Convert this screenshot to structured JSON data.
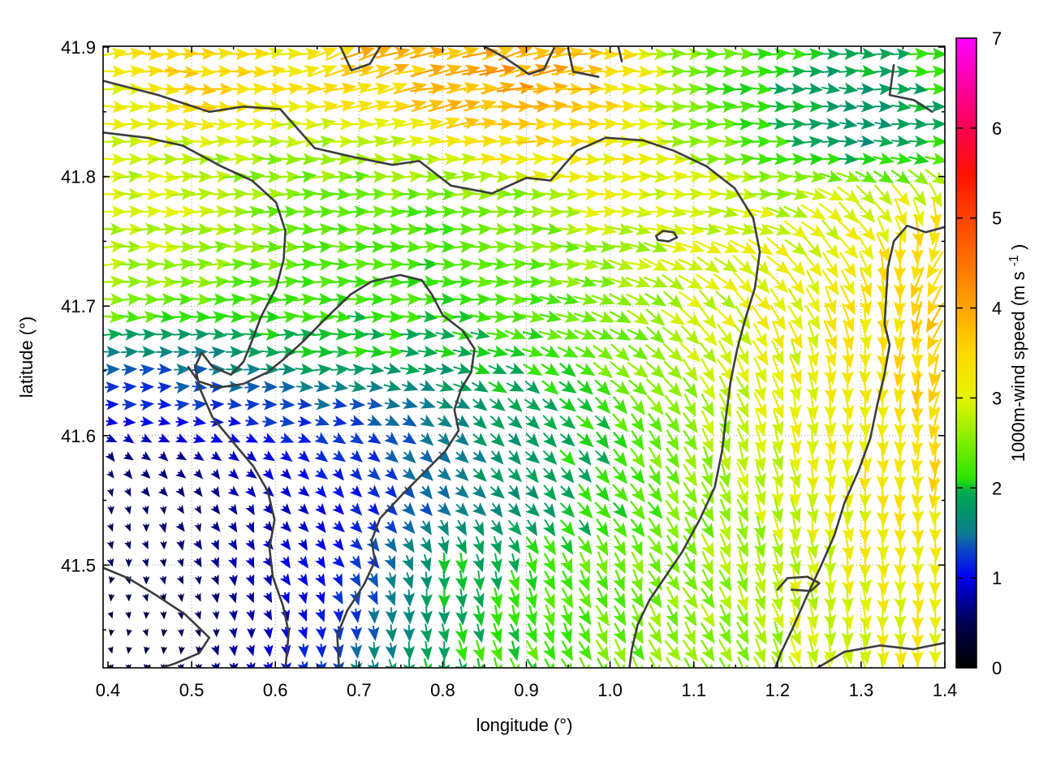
{
  "axes": {
    "xlabel": "longitude (°)",
    "ylabel": "latitude (°)",
    "x_ticks": [
      0.4,
      0.5,
      0.6,
      0.7,
      0.8,
      0.9,
      1.0,
      1.1,
      1.2,
      1.3,
      1.4
    ],
    "y_ticks": [
      41.5,
      41.6,
      41.7,
      41.8,
      41.9
    ],
    "x_minor_step": 0.05,
    "y_minor_step": 0.05,
    "x_range": [
      0.394,
      1.4
    ],
    "y_range": [
      41.42,
      41.9
    ],
    "grid_style": "dotted"
  },
  "colorbar": {
    "label_pre": "1000m-wind speed (m s",
    "label_sup": "-1",
    "label_post": ")",
    "ticks": [
      0,
      1,
      2,
      3,
      4,
      5,
      6,
      7
    ],
    "range": [
      0,
      7
    ],
    "colormap_stops": [
      [
        0.0,
        "#000000"
      ],
      [
        0.5,
        "#000052"
      ],
      [
        1.0,
        "#0000ee"
      ],
      [
        1.3,
        "#0a43c8"
      ],
      [
        1.5,
        "#0e7d91"
      ],
      [
        1.75,
        "#009667"
      ],
      [
        1.95,
        "#00a852"
      ],
      [
        2.1,
        "#2ae400"
      ],
      [
        2.5,
        "#7cee00"
      ],
      [
        3.0,
        "#e6f300"
      ],
      [
        3.5,
        "#ffd900"
      ],
      [
        4.0,
        "#ffa500"
      ],
      [
        4.5,
        "#ff7200"
      ],
      [
        5.0,
        "#ff4300"
      ],
      [
        5.5,
        "#ff1100"
      ],
      [
        6.0,
        "#fa0052"
      ],
      [
        6.5,
        "#ff00a8"
      ],
      [
        7.0,
        "#ff00ff"
      ]
    ]
  },
  "colors": {
    "contour": "#3c3c3c",
    "grid": "#9a9a9a",
    "axis": "#000000",
    "background": "#ffffff"
  },
  "chart_data": {
    "type": "vector_field",
    "title": "",
    "xlabel": "longitude (°)",
    "ylabel": "latitude (°)",
    "xlim": [
      0.394,
      1.4
    ],
    "ylim": [
      41.42,
      41.9
    ],
    "clim": [
      0,
      7
    ],
    "speed_units": "m s-1",
    "direction_convention": "degrees, 0 = east, 90 = north, arrows point downwind",
    "grid": {
      "lons": [
        0.4,
        0.5,
        0.6,
        0.7,
        0.8,
        0.9,
        1.0,
        1.1,
        1.2,
        1.3,
        1.4
      ],
      "lats": [
        41.9,
        41.86,
        41.82,
        41.78,
        41.74,
        41.7,
        41.66,
        41.62,
        41.58,
        41.54,
        41.5,
        41.46,
        41.42
      ],
      "speed": [
        [
          3.2,
          3.5,
          3.3,
          3.8,
          3.8,
          4.0,
          3.6,
          2.4,
          2.2,
          2.0,
          2.2
        ],
        [
          3.1,
          3.6,
          3.2,
          3.3,
          3.9,
          4.0,
          3.4,
          2.3,
          1.9,
          1.7,
          2.0
        ],
        [
          3.0,
          2.8,
          2.7,
          2.5,
          3.1,
          3.4,
          3.2,
          2.7,
          2.2,
          1.8,
          2.1
        ],
        [
          2.9,
          2.8,
          2.5,
          2.4,
          2.3,
          2.5,
          3.0,
          3.0,
          2.8,
          3.0,
          3.3
        ],
        [
          2.8,
          2.7,
          2.4,
          2.3,
          2.2,
          2.4,
          2.7,
          2.9,
          3.0,
          3.2,
          3.6
        ],
        [
          2.7,
          2.3,
          2.2,
          2.1,
          2.2,
          2.3,
          2.5,
          2.8,
          3.1,
          3.3,
          3.6
        ],
        [
          1.4,
          1.5,
          1.8,
          2.0,
          1.9,
          2.1,
          2.4,
          2.8,
          3.0,
          3.3,
          3.5
        ],
        [
          1.1,
          1.2,
          1.3,
          1.3,
          1.6,
          1.9,
          2.2,
          2.7,
          3.0,
          3.2,
          3.6
        ],
        [
          0.6,
          0.7,
          1.0,
          1.2,
          1.5,
          1.8,
          2.1,
          2.6,
          2.9,
          3.2,
          3.5
        ],
        [
          0.5,
          0.6,
          0.8,
          1.1,
          1.5,
          1.8,
          2.1,
          2.5,
          2.8,
          3.1,
          3.4
        ],
        [
          0.5,
          0.6,
          0.9,
          1.2,
          1.9,
          2.1,
          2.4,
          2.6,
          2.8,
          3.1,
          3.3
        ],
        [
          0.3,
          0.5,
          0.8,
          1.3,
          1.9,
          2.2,
          2.4,
          2.6,
          2.8,
          3.0,
          3.2
        ],
        [
          0.3,
          0.5,
          1.0,
          1.5,
          2.0,
          2.2,
          2.4,
          2.6,
          2.7,
          3.0,
          3.2
        ]
      ],
      "dir_deg": [
        [
          5,
          0,
          10,
          25,
          10,
          20,
          0,
          0,
          0,
          0,
          0
        ],
        [
          0,
          -5,
          0,
          15,
          15,
          5,
          0,
          0,
          0,
          -5,
          0
        ],
        [
          0,
          0,
          0,
          0,
          10,
          5,
          0,
          0,
          0,
          0,
          -10
        ],
        [
          0,
          0,
          0,
          0,
          0,
          0,
          -5,
          0,
          -10,
          -45,
          -75
        ],
        [
          0,
          0,
          0,
          0,
          0,
          0,
          -10,
          -25,
          -40,
          -60,
          -125
        ],
        [
          0,
          0,
          0,
          0,
          0,
          -5,
          -20,
          -45,
          -55,
          -75,
          -125
        ],
        [
          0,
          0,
          0,
          0,
          -10,
          -25,
          -35,
          -50,
          -70,
          -85,
          -110
        ],
        [
          0,
          0,
          0,
          -10,
          -30,
          -40,
          -45,
          -60,
          -75,
          -85,
          -110
        ],
        [
          -50,
          -40,
          -40,
          -45,
          -45,
          -45,
          -50,
          -65,
          -80,
          -85,
          -100
        ],
        [
          -80,
          -60,
          -50,
          -45,
          -48,
          -48,
          -50,
          -60,
          -75,
          -85,
          -95
        ],
        [
          -90,
          -75,
          -60,
          -50,
          -85,
          -70,
          -65,
          -62,
          -75,
          -85,
          -90
        ],
        [
          -90,
          -85,
          -70,
          -80,
          -85,
          -70,
          -62,
          -60,
          -70,
          -85,
          -88
        ],
        [
          -90,
          -85,
          -80,
          -80,
          -82,
          -68,
          -60,
          -60,
          -65,
          -80,
          -85
        ]
      ]
    },
    "contours": [
      [
        [
          0.394,
          41.874
        ],
        [
          0.46,
          41.863
        ],
        [
          0.521,
          41.85
        ],
        [
          0.562,
          41.854
        ],
        [
          0.606,
          41.852
        ],
        [
          0.647,
          41.822
        ],
        [
          0.694,
          41.815
        ],
        [
          0.74,
          41.809
        ],
        [
          0.772,
          41.812
        ],
        [
          0.81,
          41.793
        ],
        [
          0.859,
          41.787
        ],
        [
          0.9,
          41.799
        ],
        [
          0.929,
          41.797
        ],
        [
          0.96,
          41.82
        ],
        [
          0.995,
          41.83
        ],
        [
          1.039,
          41.828
        ],
        [
          1.076,
          41.82
        ],
        [
          1.115,
          41.808
        ],
        [
          1.149,
          41.791
        ],
        [
          1.171,
          41.768
        ],
        [
          1.179,
          41.742
        ],
        [
          1.173,
          41.714
        ],
        [
          1.161,
          41.689
        ],
        [
          1.152,
          41.667
        ],
        [
          1.144,
          41.642
        ],
        [
          1.139,
          41.617
        ],
        [
          1.134,
          41.589
        ],
        [
          1.125,
          41.56
        ],
        [
          1.107,
          41.535
        ],
        [
          1.086,
          41.51
        ],
        [
          1.066,
          41.491
        ],
        [
          1.047,
          41.473
        ],
        [
          1.033,
          41.454
        ],
        [
          1.026,
          41.435
        ],
        [
          1.023,
          41.42
        ]
      ],
      [
        [
          0.394,
          41.834
        ],
        [
          0.446,
          41.83
        ],
        [
          0.489,
          41.824
        ],
        [
          0.535,
          41.808
        ],
        [
          0.572,
          41.797
        ],
        [
          0.601,
          41.78
        ],
        [
          0.612,
          41.758
        ],
        [
          0.61,
          41.736
        ],
        [
          0.601,
          41.714
        ],
        [
          0.583,
          41.692
        ],
        [
          0.572,
          41.673
        ],
        [
          0.562,
          41.657
        ],
        [
          0.547,
          41.647
        ],
        [
          0.525,
          41.653
        ],
        [
          0.512,
          41.664
        ],
        [
          0.504,
          41.653
        ],
        [
          0.51,
          41.636
        ],
        [
          0.525,
          41.614
        ],
        [
          0.552,
          41.593
        ],
        [
          0.574,
          41.576
        ],
        [
          0.591,
          41.557
        ],
        [
          0.599,
          41.535
        ],
        [
          0.593,
          41.513
        ],
        [
          0.597,
          41.491
        ],
        [
          0.609,
          41.469
        ],
        [
          0.616,
          41.448
        ],
        [
          0.612,
          41.42
        ]
      ],
      [
        [
          0.749,
          41.724
        ],
        [
          0.775,
          41.72
        ],
        [
          0.787,
          41.709
        ],
        [
          0.8,
          41.693
        ],
        [
          0.824,
          41.681
        ],
        [
          0.838,
          41.667
        ],
        [
          0.834,
          41.649
        ],
        [
          0.822,
          41.636
        ],
        [
          0.814,
          41.62
        ],
        [
          0.819,
          41.604
        ],
        [
          0.803,
          41.588
        ],
        [
          0.78,
          41.573
        ],
        [
          0.751,
          41.554
        ],
        [
          0.725,
          41.536
        ],
        [
          0.715,
          41.519
        ],
        [
          0.719,
          41.503
        ],
        [
          0.706,
          41.485
        ],
        [
          0.686,
          41.465
        ],
        [
          0.674,
          41.446
        ],
        [
          0.676,
          41.42
        ]
      ],
      [
        [
          0.749,
          41.724
        ],
        [
          0.715,
          41.719
        ],
        [
          0.69,
          41.709
        ],
        [
          0.661,
          41.691
        ],
        [
          0.632,
          41.672
        ],
        [
          0.61,
          41.659
        ],
        [
          0.591,
          41.649
        ],
        [
          0.562,
          41.64
        ],
        [
          0.531,
          41.637
        ],
        [
          0.508,
          41.642
        ],
        [
          0.496,
          41.653
        ]
      ],
      [
        [
          0.394,
          41.498
        ],
        [
          0.424,
          41.49
        ],
        [
          0.457,
          41.477
        ],
        [
          0.492,
          41.462
        ],
        [
          0.521,
          41.444
        ],
        [
          0.509,
          41.432
        ],
        [
          0.48,
          41.424
        ],
        [
          0.461,
          41.42
        ]
      ],
      [
        [
          1.055,
          41.754
        ],
        [
          1.063,
          41.758
        ],
        [
          1.076,
          41.757
        ],
        [
          1.08,
          41.753
        ],
        [
          1.07,
          41.75
        ],
        [
          1.057,
          41.751
        ],
        [
          1.055,
          41.754
        ]
      ],
      [
        [
          1.339,
          41.886
        ],
        [
          1.334,
          41.863
        ],
        [
          1.363,
          41.859
        ],
        [
          1.385,
          41.85
        ]
      ],
      [
        [
          1.4,
          41.761
        ],
        [
          1.377,
          41.757
        ],
        [
          1.355,
          41.762
        ],
        [
          1.339,
          41.75
        ],
        [
          1.332,
          41.73
        ],
        [
          1.33,
          41.708
        ],
        [
          1.328,
          41.686
        ],
        [
          1.334,
          41.67
        ],
        [
          1.328,
          41.648
        ],
        [
          1.319,
          41.623
        ],
        [
          1.311,
          41.598
        ],
        [
          1.297,
          41.573
        ],
        [
          1.28,
          41.548
        ],
        [
          1.268,
          41.523
        ],
        [
          1.251,
          41.498
        ],
        [
          1.233,
          41.473
        ],
        [
          1.218,
          41.451
        ],
        [
          1.204,
          41.432
        ],
        [
          1.197,
          41.42
        ]
      ],
      [
        [
          1.2,
          41.481
        ],
        [
          1.212,
          41.49
        ],
        [
          1.236,
          41.491
        ],
        [
          1.25,
          41.486
        ],
        [
          1.24,
          41.48
        ],
        [
          1.217,
          41.481
        ]
      ],
      [
        [
          1.246,
          41.42
        ],
        [
          1.28,
          41.433
        ],
        [
          1.323,
          41.438
        ],
        [
          1.362,
          41.435
        ],
        [
          1.4,
          41.44
        ]
      ],
      [
        [
          0.851,
          41.9
        ],
        [
          0.874,
          41.892
        ],
        [
          0.903,
          41.879
        ],
        [
          0.921,
          41.883
        ],
        [
          0.933,
          41.899
        ]
      ],
      [
        [
          0.95,
          41.899
        ],
        [
          0.956,
          41.881
        ],
        [
          0.986,
          41.877
        ]
      ],
      [
        [
          1.01,
          41.9
        ],
        [
          1.014,
          41.889
        ]
      ],
      [
        [
          0.678,
          41.9
        ],
        [
          0.691,
          41.882
        ],
        [
          0.713,
          41.887
        ],
        [
          0.725,
          41.9
        ]
      ]
    ]
  }
}
